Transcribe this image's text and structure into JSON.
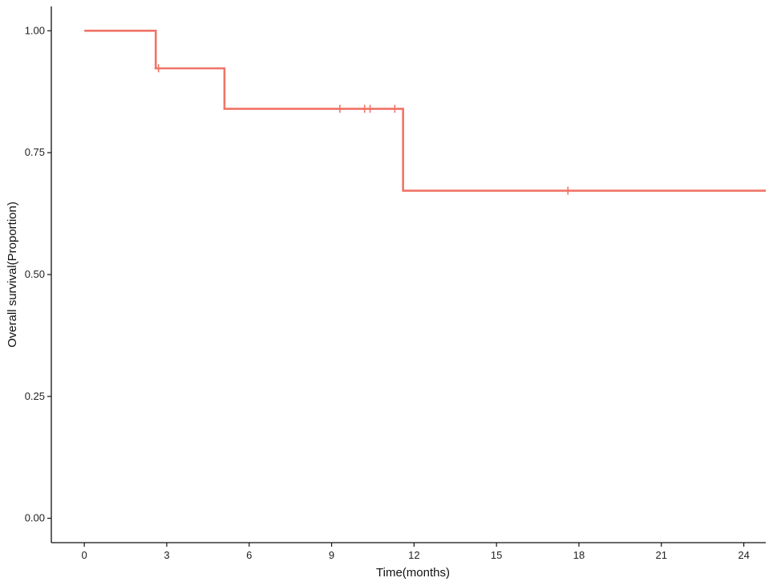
{
  "chart_data": {
    "type": "line",
    "subtype": "step",
    "title": "",
    "xlabel": "Time(months)",
    "ylabel": "Overall survival(Proportion)",
    "xlim": [
      -1.2,
      24.8
    ],
    "ylim": [
      -0.05,
      1.05
    ],
    "x_ticks": [
      0,
      3,
      6,
      9,
      12,
      15,
      18,
      21,
      24
    ],
    "y_ticks": [
      0.0,
      0.25,
      0.5,
      0.75,
      1.0
    ],
    "y_tick_labels": [
      "0.00",
      "0.25",
      "0.50",
      "0.75",
      "1.00"
    ],
    "grid": false,
    "legend": "none",
    "series": [
      {
        "color": "#f07467",
        "step_x": [
          0,
          2.6,
          5.1,
          11.6,
          24.8
        ],
        "step_y": [
          1.0,
          0.923,
          0.84,
          0.672,
          0.672
        ],
        "censor_x": [
          2.7,
          9.3,
          10.2,
          10.4,
          11.3,
          17.6
        ],
        "censor_y": [
          0.923,
          0.84,
          0.84,
          0.84,
          0.84,
          0.672
        ]
      }
    ]
  }
}
